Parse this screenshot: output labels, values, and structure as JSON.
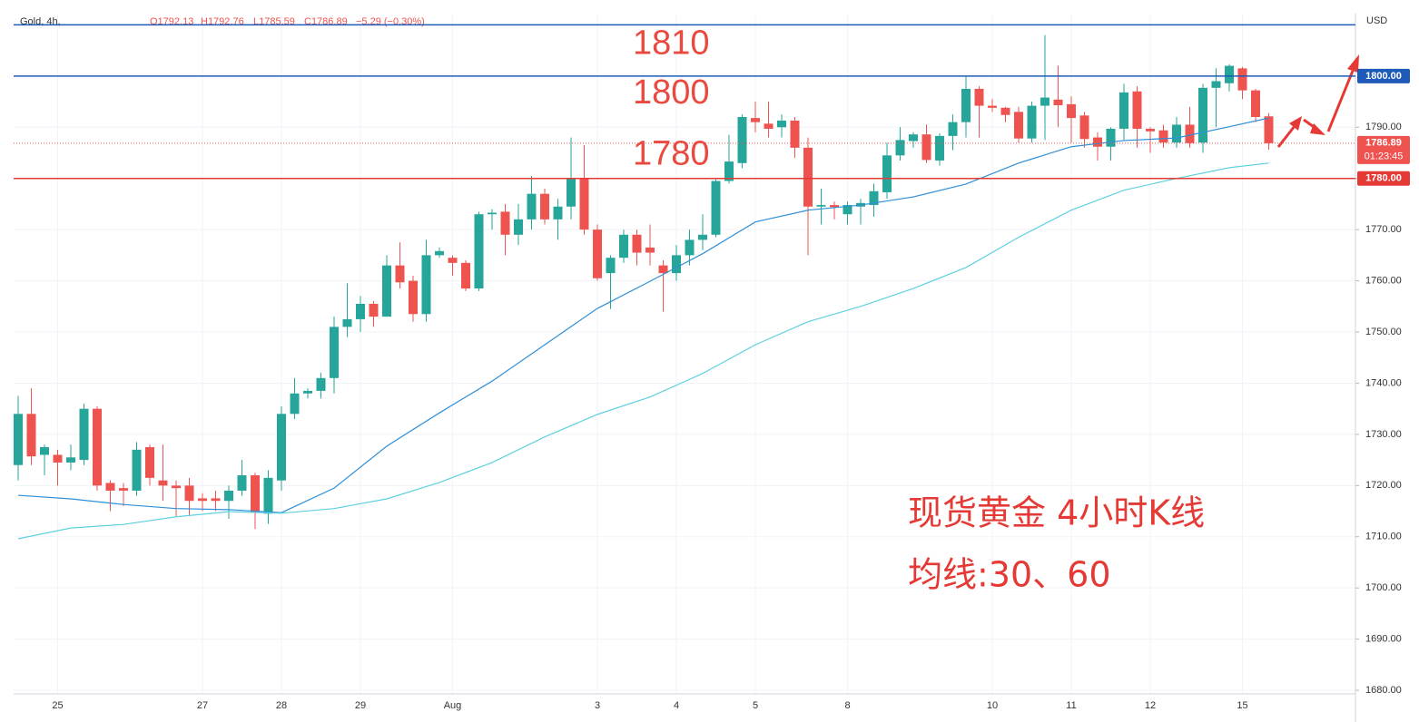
{
  "header": {
    "symbol": "Gold, 4h,",
    "ohlc": [
      "O1792.13",
      "H1792.76",
      "L1785.59",
      "C1786.89"
    ],
    "change": "−5.29 (−0.30%)",
    "currency": "USD"
  },
  "chart_data": {
    "type": "candlestick",
    "categories": [
      null,
      null,
      null,
      "25",
      null,
      null,
      null,
      null,
      null,
      null,
      null,
      null,
      null,
      null,
      "27",
      null,
      null,
      null,
      null,
      null,
      "28",
      null,
      null,
      null,
      null,
      null,
      "29",
      null,
      null,
      null,
      null,
      null,
      null,
      "Aug",
      null,
      null,
      null,
      null,
      null,
      null,
      null,
      null,
      null,
      null,
      "3",
      null,
      null,
      null,
      null,
      null,
      "4",
      null,
      null,
      null,
      null,
      null,
      "5",
      null,
      null,
      null,
      null,
      null,
      null,
      "8",
      null,
      null,
      null,
      null,
      null,
      null,
      null,
      null,
      null,
      null,
      "10",
      null,
      null,
      null,
      null,
      null,
      "11",
      null,
      null,
      null,
      null,
      null,
      "12",
      null,
      null,
      null,
      null,
      null,
      null,
      "15",
      null,
      null
    ],
    "open": [
      1724,
      1734,
      1726,
      1726,
      1724.5,
      1725,
      1735,
      1720.5,
      1719.5,
      1719,
      1727.5,
      1721,
      1720,
      1720,
      1717.5,
      1717.5,
      1717,
      1719,
      1722,
      1714.5,
      1721,
      1734,
      1738,
      1738.5,
      1741,
      1751,
      1752.5,
      1755.5,
      1753,
      1763,
      1760,
      1753.5,
      1765,
      1764.5,
      1763.5,
      1758.5,
      1773,
      1773.5,
      1769,
      1772,
      1777,
      1772,
      1774.5,
      1780,
      1770,
      1761.5,
      1764.5,
      1769,
      1766.5,
      1763,
      1761.5,
      1765,
      1768,
      1769,
      1779.5,
      1783,
      1791.8,
      1790.7,
      1790,
      1791.3,
      1786,
      1774.5,
      1774.8,
      1773,
      1774.5,
      1774.8,
      1777.3,
      1784.5,
      1787.3,
      1788.6,
      1783.5,
      1788.3,
      1791,
      1797.5,
      1794.2,
      1793.8,
      1793,
      1787.8,
      1794.2,
      1795.4,
      1794.5,
      1792.3,
      1788,
      1786.2,
      1789.7,
      1797,
      1789.7,
      1789.4,
      1787,
      1790.5,
      1787,
      1797.7,
      1798.6,
      1801.5,
      1797.2,
      1792.13
    ],
    "high": [
      1737.5,
      1739,
      1728,
      1727,
      1728,
      1736,
      1735.5,
      1721,
      1720.5,
      1728.5,
      1728,
      1728,
      1721,
      1721.5,
      1718.5,
      1719,
      1720,
      1725,
      1722.5,
      1723,
      1735.5,
      1741,
      1739,
      1742,
      1753,
      1759.5,
      1757,
      1756,
      1765,
      1767.5,
      1761,
      1768,
      1766.5,
      1765,
      1764,
      1773.5,
      1774,
      1775,
      1775,
      1780.5,
      1778,
      1776,
      1788,
      1786.5,
      1771,
      1765,
      1770,
      1770,
      1771,
      1764,
      1767,
      1770,
      1773,
      1780,
      1788.5,
      1792.5,
      1795,
      1795,
      1792.5,
      1792,
      1788,
      1778,
      1775.5,
      1775.5,
      1776,
      1779,
      1787,
      1790,
      1789,
      1790.5,
      1788.8,
      1792.5,
      1800,
      1798,
      1795.5,
      1794,
      1794,
      1795,
      1808,
      1802,
      1796,
      1793,
      1789,
      1790,
      1798.5,
      1798,
      1790,
      1790.5,
      1792,
      1794,
      1798.5,
      1801.5,
      1802.3,
      1801.8,
      1797.5,
      1792.76
    ],
    "low": [
      1721,
      1724,
      1722,
      1720,
      1723,
      1724,
      1719,
      1715,
      1716,
      1718,
      1720,
      1717,
      1714,
      1714,
      1715,
      1715,
      1713.5,
      1718,
      1711.5,
      1712.5,
      1719,
      1733,
      1737,
      1737,
      1738,
      1749,
      1750,
      1751,
      1753,
      1758.5,
      1752,
      1752,
      1764.5,
      1761,
      1758,
      1758,
      1770,
      1765,
      1767,
      1770,
      1771,
      1768,
      1772,
      1769,
      1760,
      1754.5,
      1763.5,
      1763,
      1763,
      1754,
      1760,
      1763,
      1766,
      1768.5,
      1779,
      1782,
      1789,
      1788,
      1788,
      1784,
      1765,
      1771,
      1772,
      1771,
      1771,
      1772.5,
      1776,
      1783.5,
      1786,
      1783,
      1782.5,
      1785.5,
      1788,
      1788,
      1793,
      1791,
      1787,
      1787,
      1787.5,
      1790,
      1787,
      1786,
      1783.5,
      1783.5,
      1787.5,
      1786,
      1785,
      1786,
      1786,
      1786,
      1785,
      1790,
      1797,
      1795.5,
      1791,
      1785.59
    ],
    "close": [
      1734,
      1725.7,
      1727.5,
      1724.5,
      1725.5,
      1735,
      1720,
      1719,
      1719,
      1727,
      1721.5,
      1720,
      1719.5,
      1717,
      1717,
      1717,
      1719,
      1722,
      1714.7,
      1721.5,
      1734,
      1738,
      1738.5,
      1741,
      1751,
      1752.5,
      1755.5,
      1753,
      1763,
      1759.7,
      1753.5,
      1765,
      1765.8,
      1763.5,
      1758.5,
      1773,
      1773.3,
      1769,
      1772,
      1777,
      1772,
      1774.5,
      1780,
      1770,
      1760.5,
      1764.5,
      1769,
      1765.5,
      1765.5,
      1761.5,
      1765,
      1768,
      1769,
      1779.5,
      1783.3,
      1792,
      1791,
      1789.7,
      1791.3,
      1786,
      1774.5,
      1774.8,
      1774.4,
      1774.8,
      1775.2,
      1777.5,
      1784.5,
      1787.5,
      1788.6,
      1783.6,
      1788.3,
      1791,
      1797.5,
      1794.2,
      1793.8,
      1792.4,
      1787.8,
      1794.2,
      1795.8,
      1794.3,
      1791.8,
      1787.7,
      1786.2,
      1789.7,
      1796.8,
      1789.7,
      1789.2,
      1787,
      1790.5,
      1786.9,
      1797.7,
      1799,
      1802,
      1797.2,
      1792,
      1786.89
    ],
    "up_color": "#26a69a",
    "down_color": "#ef5350",
    "ma_lines": [
      {
        "color": "#2f8fd8",
        "x": [
          0,
          4,
          8,
          12,
          16,
          20,
          24,
          28,
          32,
          36,
          40,
          44,
          48,
          52,
          56,
          60,
          64,
          68,
          72,
          76,
          80,
          84,
          88,
          92,
          95
        ],
        "values": [
          1718.1,
          1717.4,
          1716.3,
          1715.5,
          1715.3,
          1714.7,
          1719.5,
          1727.7,
          1734.2,
          1740.4,
          1747.5,
          1754.6,
          1759.9,
          1765.3,
          1771.5,
          1773.8,
          1774.8,
          1776.4,
          1778.9,
          1783,
          1786.2,
          1787.4,
          1787.9,
          1790.1,
          1791.8
        ]
      },
      {
        "color": "#5fd0e0",
        "x": [
          0,
          4,
          8,
          12,
          16,
          20,
          24,
          28,
          32,
          36,
          40,
          44,
          48,
          52,
          56,
          60,
          64,
          68,
          72,
          76,
          80,
          84,
          88,
          92,
          95
        ],
        "values": [
          1709.6,
          1711.7,
          1712.4,
          1713.9,
          1714.9,
          1714.6,
          1715.5,
          1717.4,
          1720.6,
          1724.5,
          1729.5,
          1733.9,
          1737.3,
          1741.9,
          1747.5,
          1752,
          1755,
          1758.5,
          1762.6,
          1768.5,
          1773.8,
          1777.7,
          1780,
          1782.1,
          1783
        ]
      }
    ],
    "ylim": [
      1679.3,
      1812.2
    ],
    "yticks": [
      {
        "value": 1680,
        "label": "1680.00"
      },
      {
        "value": 1690,
        "label": "1690.00"
      },
      {
        "value": 1700,
        "label": "1700.00"
      },
      {
        "value": 1710,
        "label": "1710.00"
      },
      {
        "value": 1720,
        "label": "1720.00"
      },
      {
        "value": 1730,
        "label": "1730.00"
      },
      {
        "value": 1740,
        "label": "1740.00"
      },
      {
        "value": 1750,
        "label": "1750.00"
      },
      {
        "value": 1760,
        "label": "1760.00"
      },
      {
        "value": 1770,
        "label": "1770.00"
      },
      {
        "value": 1780,
        "label": "1780.00"
      },
      {
        "value": 1790,
        "label": "1790.00"
      }
    ],
    "grid": true,
    "levels": [
      {
        "value": 1810,
        "label": "1810",
        "color": "#1e5bb8"
      },
      {
        "value": 1800,
        "label": "1800",
        "axis_label": "1800.00",
        "color": "#1e5bb8"
      },
      {
        "value": 1780,
        "label": "1780",
        "axis_label": "1780.00",
        "color": "#e53935"
      }
    ],
    "last_price": {
      "value": 1786.89,
      "label": "1786.89",
      "countdown": "01:23:45",
      "color": "#ef5350"
    },
    "annotations": [
      "现货黄金 4小时K线",
      "均线:30、60"
    ]
  }
}
